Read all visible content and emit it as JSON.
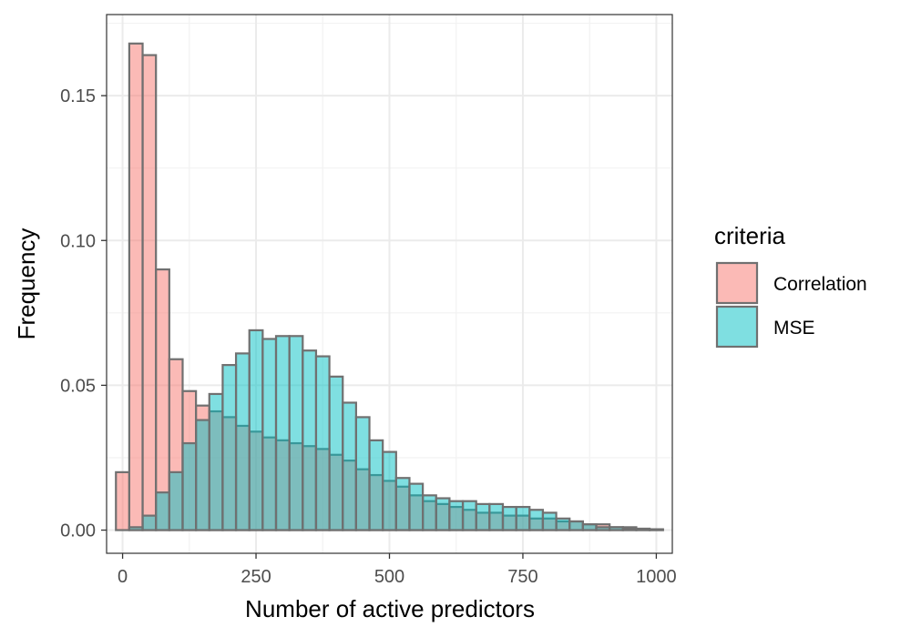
{
  "chart_data": {
    "type": "bar",
    "subtype": "overlaid-histogram",
    "xlabel": "Number of active predictors",
    "ylabel": "Frequency",
    "xlim": [
      -30,
      1030
    ],
    "ylim": [
      -0.008,
      0.178
    ],
    "x_ticks": [
      0,
      250,
      500,
      750,
      1000
    ],
    "x_tick_labels": [
      "0",
      "250",
      "500",
      "750",
      "1000"
    ],
    "y_ticks": [
      0.0,
      0.05,
      0.1,
      0.15
    ],
    "y_tick_labels": [
      "0.00",
      "0.05",
      "0.10",
      "0.15"
    ],
    "bin_width": 25,
    "bin_starts": [
      -12.5,
      12.5,
      37.5,
      62.5,
      87.5,
      112.5,
      137.5,
      162.5,
      187.5,
      212.5,
      237.5,
      262.5,
      287.5,
      312.5,
      337.5,
      362.5,
      387.5,
      412.5,
      437.5,
      462.5,
      487.5,
      512.5,
      537.5,
      562.5,
      587.5,
      612.5,
      637.5,
      662.5,
      687.5,
      712.5,
      737.5,
      762.5,
      787.5,
      812.5,
      837.5,
      862.5,
      887.5,
      912.5,
      937.5,
      962.5,
      987.5
    ],
    "series": [
      {
        "name": "Correlation",
        "color": "#F8766D",
        "values": [
          0.02,
          0.168,
          0.164,
          0.09,
          0.059,
          0.048,
          0.043,
          0.041,
          0.039,
          0.036,
          0.034,
          0.032,
          0.031,
          0.03,
          0.029,
          0.028,
          0.026,
          0.024,
          0.021,
          0.019,
          0.017,
          0.015,
          0.012,
          0.01,
          0.009,
          0.008,
          0.007,
          0.006,
          0.006,
          0.005,
          0.005,
          0.004,
          0.004,
          0.003,
          0.003,
          0.002,
          0.002,
          0.001,
          0.001,
          0.0005,
          0.0003
        ]
      },
      {
        "name": "MSE",
        "color": "#00BFC4",
        "values": [
          0.0,
          0.001,
          0.005,
          0.013,
          0.02,
          0.03,
          0.038,
          0.047,
          0.057,
          0.061,
          0.069,
          0.066,
          0.067,
          0.067,
          0.062,
          0.06,
          0.053,
          0.044,
          0.039,
          0.031,
          0.027,
          0.018,
          0.016,
          0.012,
          0.011,
          0.01,
          0.01,
          0.009,
          0.009,
          0.008,
          0.008,
          0.007,
          0.006,
          0.004,
          0.003,
          0.002,
          0.001,
          0.001,
          0.0005,
          0.0003,
          0.0002
        ]
      }
    ],
    "legend": {
      "title": "criteria",
      "position": "right"
    },
    "grid": true,
    "theme": "bw"
  }
}
